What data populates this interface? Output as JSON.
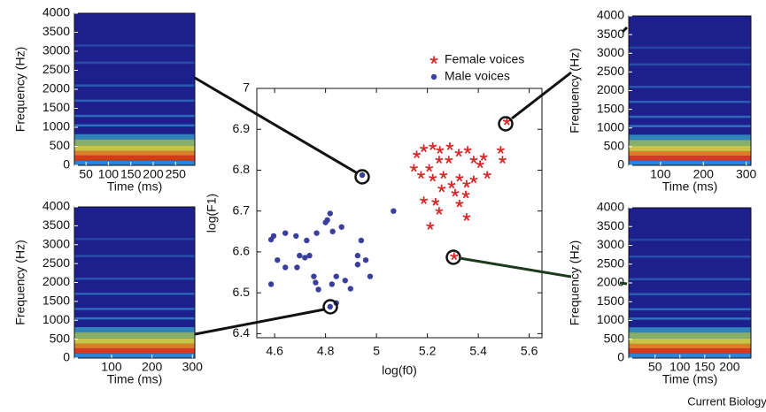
{
  "chart_data": [
    {
      "type": "scatter",
      "xlabel": "log(f0)",
      "ylabel": "log(F1)",
      "xlim": [
        4.53,
        5.65
      ],
      "xticks": [
        4.6,
        4.8,
        5,
        5.2,
        5.4,
        5.6
      ],
      "ylim": [
        6.39,
        7.0
      ],
      "yticks": [
        6.4,
        6.5,
        6.6,
        6.7,
        6.8,
        6.9,
        7
      ],
      "legend": "top-right",
      "series": [
        {
          "name": "Female voices",
          "color": "#d42a2a",
          "marker": "star",
          "x": [
            5.158,
            5.186,
            5.221,
            5.249,
            5.288,
            5.323,
            5.358,
            5.382,
            5.407,
            5.435,
            5.421,
            5.488,
            5.495,
            5.284,
            5.246,
            5.207,
            5.147,
            5.175,
            5.221,
            5.263,
            5.326,
            5.354,
            5.382,
            5.295,
            5.256,
            5.232,
            5.309,
            5.351,
            5.326,
            5.246,
            5.211,
            5.354,
            5.186,
            5.512,
            5.305
          ],
          "values": [
            6.838,
            6.853,
            6.858,
            6.849,
            6.858,
            6.842,
            6.849,
            6.825,
            6.814,
            6.788,
            6.832,
            6.849,
            6.825,
            6.825,
            6.825,
            6.805,
            6.805,
            6.788,
            6.781,
            6.788,
            6.781,
            6.766,
            6.777,
            6.764,
            6.755,
            6.722,
            6.744,
            6.74,
            6.718,
            6.7,
            6.663,
            6.685,
            6.726,
            6.919,
            6.589
          ]
        },
        {
          "name": "Male voices",
          "color": "#3a3f9e",
          "marker": "circle",
          "x": [
            4.586,
            4.596,
            4.642,
            4.684,
            4.765,
            4.828,
            4.863,
            4.807,
            4.818,
            4.8,
            4.726,
            4.719,
            4.611,
            4.586,
            4.642,
            4.688,
            4.698,
            4.737,
            4.754,
            4.761,
            4.772,
            4.825,
            4.842,
            4.877,
            4.898,
            4.926,
            4.94,
            4.958,
            4.975,
            4.926,
            4.842,
            5.067,
            4.944,
            4.818
          ],
          "values": [
            6.63,
            6.639,
            6.646,
            6.639,
            6.646,
            6.65,
            6.661,
            6.678,
            6.694,
            6.672,
            6.628,
            6.586,
            6.58,
            6.521,
            6.562,
            6.562,
            6.591,
            6.591,
            6.54,
            6.525,
            6.508,
            6.521,
            6.54,
            6.53,
            6.51,
            6.591,
            6.628,
            6.58,
            6.54,
            6.569,
            6.475,
            6.7,
            6.788,
            6.466
          ]
        }
      ]
    },
    {
      "type": "spectrogram",
      "xlabel": "Time (ms)",
      "ylabel": "Frequency (Hz)",
      "xlim": [
        24,
        293
      ],
      "xticks": [
        50,
        100,
        150,
        200,
        250
      ],
      "ylim": [
        0,
        4000
      ],
      "yticks": [
        0,
        500,
        1000,
        1500,
        2000,
        2500,
        3000,
        3500,
        4000
      ]
    },
    {
      "type": "spectrogram",
      "xlabel": "Time (ms)",
      "ylabel": "Frequency (Hz)",
      "xlim": [
        8,
        306
      ],
      "xticks": [
        100,
        200,
        300
      ],
      "ylim": [
        0,
        4000
      ],
      "yticks": [
        0,
        500,
        1000,
        1500,
        2000,
        2500,
        3000,
        3500,
        4000
      ]
    },
    {
      "type": "spectrogram",
      "xlabel": "Time (ms)",
      "ylabel": "Frequency (Hz)",
      "xlim": [
        26,
        311
      ],
      "xticks": [
        100,
        200,
        300
      ],
      "ylim": [
        0,
        4000
      ],
      "yticks": [
        0,
        500,
        1000,
        1500,
        2000,
        2500,
        3000,
        3500,
        4000
      ]
    },
    {
      "type": "spectrogram",
      "xlabel": "Time (ms)",
      "ylabel": "Frequency (Hz)",
      "xlim": [
        -3,
        243
      ],
      "xticks": [
        50,
        100,
        150,
        200
      ],
      "ylim": [
        0,
        4000
      ],
      "yticks": [
        0,
        500,
        1000,
        1500,
        2000,
        2500,
        3000,
        3500,
        4000
      ]
    }
  ],
  "credit": "Current Biology"
}
